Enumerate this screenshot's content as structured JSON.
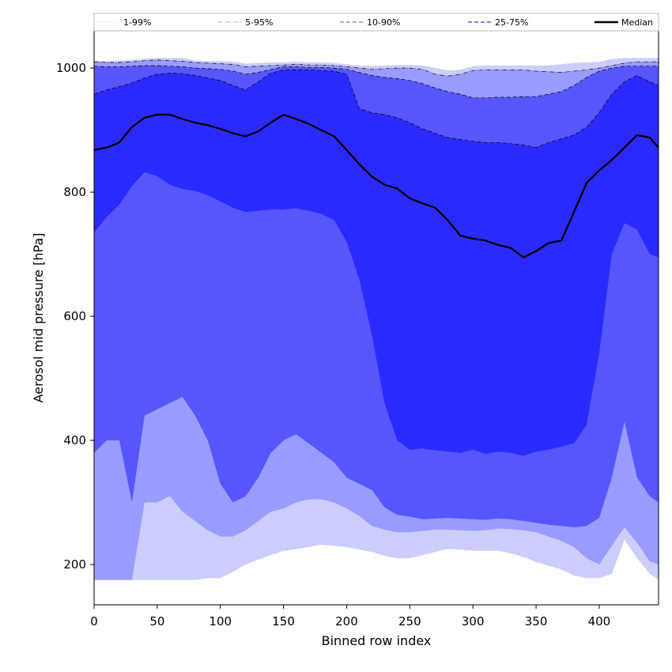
{
  "chart_data": {
    "type": "area",
    "xlabel": "Binned row index",
    "ylabel": "Aerosol mid pressure [hPa]",
    "xlim": [
      0,
      447
    ],
    "ylim": [
      135,
      1060
    ],
    "xticks": [
      0,
      50,
      100,
      150,
      200,
      250,
      300,
      350,
      400
    ],
    "yticks": [
      200,
      400,
      600,
      800,
      1000
    ],
    "legend_position": "top",
    "grid": false,
    "legend": [
      {
        "key": "p1_99",
        "label": "1-99%",
        "style": "dotted",
        "color": "#d8d8f4"
      },
      {
        "key": "p5_95",
        "label": "5-95%",
        "style": "dashdot",
        "color": "#a8a8ee"
      },
      {
        "key": "p10_90",
        "label": "10-90%",
        "style": "dashed",
        "color": "#8a8af0"
      },
      {
        "key": "p25_75",
        "label": "25-75%",
        "style": "dashed",
        "color": "#5a5aee"
      },
      {
        "key": "median",
        "label": "Median",
        "style": "solid",
        "color": "#000000"
      }
    ],
    "x": [
      0,
      10,
      20,
      30,
      40,
      50,
      60,
      70,
      80,
      90,
      100,
      110,
      120,
      130,
      140,
      150,
      160,
      170,
      180,
      190,
      200,
      210,
      220,
      230,
      240,
      250,
      260,
      270,
      280,
      290,
      300,
      310,
      320,
      330,
      340,
      350,
      360,
      370,
      380,
      390,
      400,
      410,
      420,
      430,
      440,
      447
    ],
    "bands": [
      {
        "name": "1-99%",
        "color": "#cccdfd",
        "upper": [
          1012,
          1011,
          1012,
          1013,
          1015,
          1016,
          1016,
          1016,
          1012,
          1011,
          1011,
          1010,
          1007,
          1008,
          1009,
          1009,
          1010,
          1009,
          1009,
          1008,
          1006,
          1004,
          1003,
          1004,
          1005,
          1005,
          1004,
          1000,
          996,
          997,
          1003,
          1004,
          1004,
          1004,
          1004,
          1004,
          1004,
          1006,
          1008,
          1009,
          1010,
          1014,
          1016,
          1016,
          1016,
          1016
        ],
        "lower": [
          175,
          175,
          175,
          175,
          175,
          175,
          175,
          175,
          175,
          178,
          178,
          188,
          200,
          208,
          215,
          222,
          225,
          228,
          232,
          230,
          228,
          224,
          220,
          214,
          210,
          210,
          215,
          220,
          225,
          224,
          222,
          222,
          222,
          218,
          212,
          204,
          198,
          192,
          182,
          178,
          178,
          185,
          240,
          210,
          185,
          175
        ]
      },
      {
        "name": "5-95%",
        "color": "#9a9bff",
        "upper": [
          1010,
          1009,
          1009,
          1010,
          1012,
          1013,
          1012,
          1011,
          1009,
          1008,
          1007,
          1006,
          1002,
          1003,
          1004,
          1005,
          1006,
          1005,
          1005,
          1004,
          1002,
          1000,
          998,
          999,
          1000,
          1000,
          998,
          990,
          987,
          990,
          996,
          997,
          997,
          997,
          997,
          995,
          994,
          993,
          995,
          997,
          1000,
          1004,
          1008,
          1010,
          1010,
          1010
        ],
        "lower": [
          175,
          175,
          175,
          175,
          300,
          300,
          310,
          285,
          270,
          255,
          245,
          245,
          255,
          270,
          285,
          290,
          300,
          305,
          305,
          300,
          290,
          278,
          262,
          256,
          252,
          252,
          254,
          256,
          256,
          255,
          254,
          255,
          258,
          257,
          255,
          252,
          245,
          238,
          228,
          210,
          200,
          230,
          260,
          235,
          205,
          200
        ]
      },
      {
        "name": "10-90%",
        "color": "#5656fd",
        "upper": [
          1003,
          1002,
          1002,
          1003,
          1004,
          1004,
          1003,
          1002,
          1000,
          999,
          998,
          995,
          990,
          993,
          998,
          1002,
          1002,
          1001,
          1001,
          1000,
          998,
          993,
          988,
          985,
          983,
          980,
          975,
          968,
          962,
          958,
          952,
          952,
          953,
          953,
          954,
          954,
          958,
          962,
          972,
          985,
          995,
          1000,
          1003,
          1003,
          1003,
          1003
        ],
        "lower": [
          380,
          400,
          400,
          300,
          440,
          450,
          460,
          470,
          440,
          400,
          330,
          300,
          310,
          340,
          380,
          400,
          410,
          395,
          380,
          365,
          340,
          330,
          320,
          292,
          280,
          277,
          273,
          274,
          275,
          274,
          273,
          272,
          274,
          273,
          270,
          267,
          264,
          262,
          260,
          262,
          275,
          340,
          430,
          340,
          310,
          300
        ]
      },
      {
        "name": "25-75%",
        "color": "#2a2aff",
        "upper": [
          958,
          965,
          970,
          976,
          984,
          990,
          992,
          991,
          988,
          984,
          980,
          972,
          965,
          978,
          992,
          997,
          997,
          997,
          996,
          995,
          990,
          935,
          928,
          925,
          920,
          912,
          902,
          895,
          888,
          885,
          882,
          880,
          880,
          878,
          876,
          872,
          880,
          886,
          892,
          905,
          928,
          958,
          978,
          988,
          978,
          972
        ],
        "lower": [
          735,
          760,
          780,
          810,
          832,
          826,
          812,
          805,
          802,
          795,
          785,
          775,
          768,
          770,
          772,
          772,
          774,
          770,
          765,
          755,
          720,
          660,
          570,
          460,
          400,
          385,
          387,
          384,
          382,
          380,
          385,
          378,
          382,
          380,
          375,
          382,
          385,
          390,
          395,
          425,
          540,
          700,
          750,
          740,
          700,
          695
        ]
      }
    ],
    "lines": [
      {
        "name": "Median",
        "color": "#000000",
        "values": [
          868,
          872,
          880,
          905,
          920,
          925,
          925,
          918,
          912,
          908,
          902,
          895,
          890,
          898,
          912,
          925,
          918,
          910,
          900,
          890,
          868,
          845,
          825,
          812,
          806,
          790,
          782,
          775,
          755,
          730,
          725,
          722,
          715,
          710,
          695,
          705,
          718,
          722,
          768,
          815,
          835,
          852,
          872,
          892,
          888,
          872
        ]
      }
    ]
  }
}
